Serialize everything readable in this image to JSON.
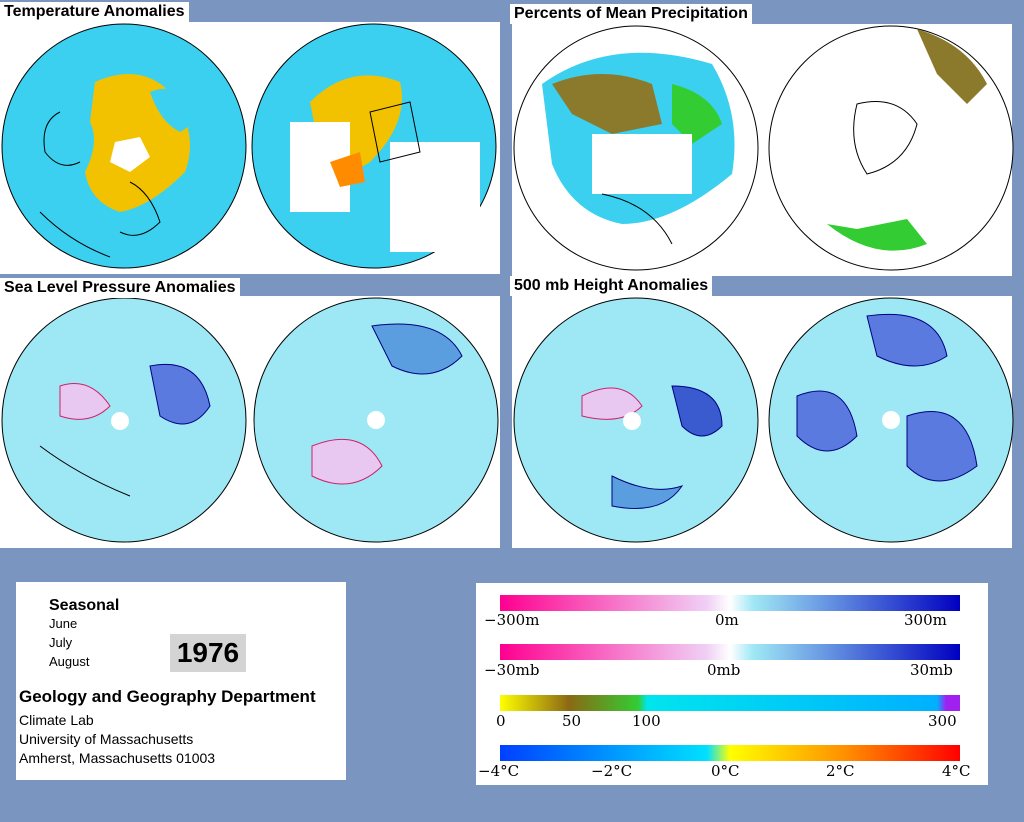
{
  "panels": {
    "temperature": {
      "title": "Temperature Anomalies"
    },
    "precipitation": {
      "title": "Percents of Mean Precipitation"
    },
    "sea_level_pressure": {
      "title": "Sea Level Pressure Anomalies"
    },
    "height_500mb": {
      "title": "500 mb Height Anomalies"
    }
  },
  "info": {
    "period": "Seasonal",
    "months": [
      "June",
      "July",
      "August"
    ],
    "year": "1976",
    "department": "Geology and Geography Department",
    "lines": [
      "Climate Lab",
      "University of Massachusetts",
      "Amherst, Massachusetts 01003"
    ]
  },
  "legend": {
    "height_scale": {
      "labels": [
        "−300m",
        "0m",
        "300m"
      ],
      "colors": [
        "#ff0090",
        "#ffffff",
        "#0000c0"
      ]
    },
    "pressure_scale": {
      "labels": [
        "−30mb",
        "0mb",
        "30mb"
      ],
      "colors": [
        "#ff0090",
        "#ffffff",
        "#0000c0"
      ]
    },
    "precip_scale": {
      "labels": [
        "0",
        "50",
        "100",
        "300"
      ],
      "colors": [
        "#ffff00",
        "#8b6914",
        "#33cc33",
        "#00e5ee",
        "#00b0ff",
        "#a020f0"
      ]
    },
    "temp_scale": {
      "labels": [
        "−4°C",
        "−2°C",
        "0°C",
        "2°C",
        "4°C"
      ],
      "colors": [
        "#0040ff",
        "#00c8ff",
        "#ffff00",
        "#ff8000",
        "#ff0000"
      ]
    }
  },
  "colors": {
    "background": "#7a95bf",
    "ocean_anomaly": "#3cd0f0",
    "warm": "#f2c200",
    "positive_contour": "#d0206a",
    "negative_contour": "#000080"
  }
}
